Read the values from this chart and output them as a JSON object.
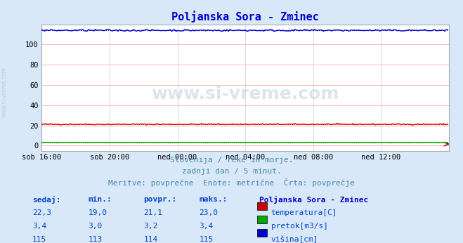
{
  "title": "Poljanska Sora - Zminec",
  "title_color": "#0000cc",
  "bg_color": "#d8e8f8",
  "plot_bg_color": "#ffffff",
  "grid_color_h": "#ff9999",
  "grid_color_v": "#cccccc",
  "x_labels": [
    "sob 16:00",
    "sob 20:00",
    "ned 00:00",
    "ned 04:00",
    "ned 08:00",
    "ned 12:00"
  ],
  "x_ticks": [
    0,
    48,
    96,
    144,
    192,
    240
  ],
  "x_max": 288,
  "ylim": [
    -5,
    120
  ],
  "yticks": [
    0,
    20,
    40,
    60,
    80,
    100
  ],
  "temp_value": 21.1,
  "temp_min": 19.0,
  "temp_max": 23.0,
  "pretok_value": 3.2,
  "pretok_min": 3.0,
  "pretok_max": 3.4,
  "visina_value": 114,
  "visina_min": 113,
  "visina_max": 115,
  "temp_color": "#cc0000",
  "pretok_color": "#00aa00",
  "visina_color": "#0000cc",
  "avg_color_temp": "#ff6666",
  "avg_color_pretok": "#66cc66",
  "avg_color_visina": "#6666ff",
  "watermark": "www.si-vreme.com",
  "subtitle1": "Slovenija / reke in morje.",
  "subtitle2": "zadnji dan / 5 minut.",
  "subtitle3": "Meritve: povprečne  Enote: metrične  Črta: povprečje",
  "subtitle_color": "#4488aa",
  "table_header": [
    "sedaj:",
    "min.:",
    "povpr.:",
    "maks.:"
  ],
  "table_color": "#0044cc",
  "legend_title": "Poljanska Sora - Zminec",
  "legend_title_color": "#0000cc",
  "rows": [
    {
      "sedaj": "22,3",
      "min": "19,0",
      "povpr": "21,1",
      "maks": "23,0",
      "color": "#cc0000",
      "label": "temperatura[C]"
    },
    {
      "sedaj": "3,4",
      "min": "3,0",
      "povpr": "3,2",
      "maks": "3,4",
      "color": "#00aa00",
      "label": "pretok[m3/s]"
    },
    {
      "sedaj": "115",
      "min": "113",
      "povpr": "114",
      "maks": "115",
      "color": "#0000cc",
      "label": "višina[cm]"
    }
  ]
}
